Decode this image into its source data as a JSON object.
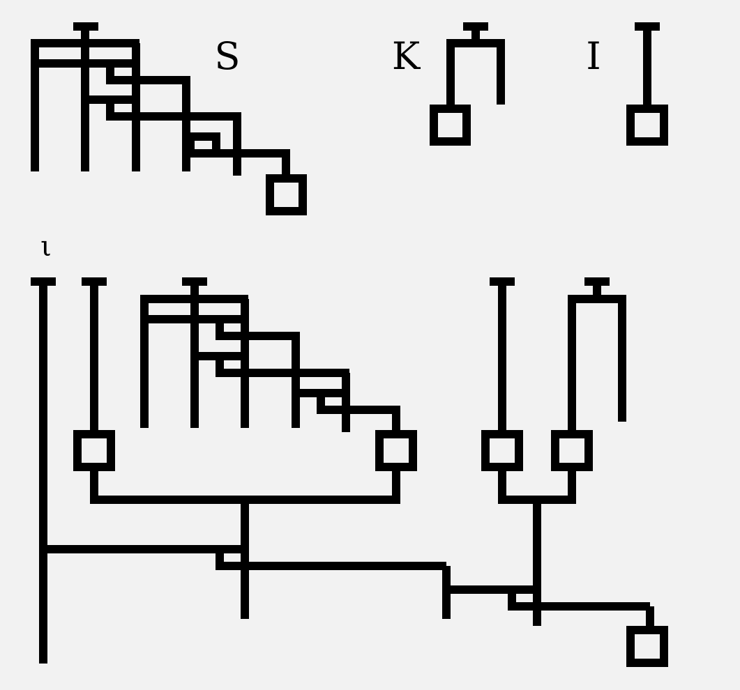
{
  "labels": {
    "s": "S",
    "k": "K",
    "i": "I",
    "iota": "ι"
  },
  "colors": {
    "background": "#f2f2f2",
    "stroke": "#000000"
  }
}
